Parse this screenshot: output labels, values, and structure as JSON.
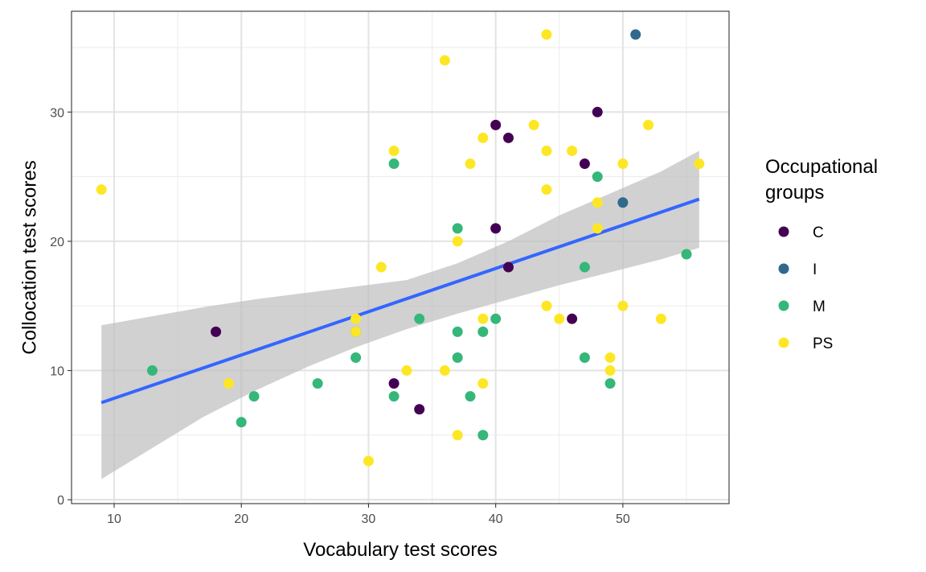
{
  "chart_data": {
    "type": "scatter",
    "title": "",
    "xlabel": "Vocabulary test scores",
    "ylabel": "Collocation test scores",
    "xlim": [
      6.65,
      58.35
    ],
    "ylim": [
      -0.3,
      37.8
    ],
    "x_ticks": [
      10,
      20,
      30,
      40,
      50
    ],
    "y_ticks": [
      0,
      10,
      20,
      30
    ],
    "grid": true,
    "legend": {
      "title_lines": [
        "Occupational",
        "groups"
      ],
      "placement": "right"
    },
    "series": [
      {
        "name": "C",
        "color": "#440154",
        "points": [
          [
            18,
            13
          ],
          [
            32,
            9
          ],
          [
            34,
            7
          ],
          [
            40,
            29
          ],
          [
            40,
            21
          ],
          [
            41,
            28
          ],
          [
            41,
            18
          ],
          [
            46,
            14
          ],
          [
            47,
            26
          ],
          [
            48,
            30
          ]
        ]
      },
      {
        "name": "I",
        "color": "#31688e",
        "points": [
          [
            29,
            13
          ],
          [
            50,
            23
          ],
          [
            51,
            36
          ]
        ]
      },
      {
        "name": "M",
        "color": "#35b779",
        "points": [
          [
            13,
            10
          ],
          [
            20,
            6
          ],
          [
            21,
            8
          ],
          [
            26,
            9
          ],
          [
            29,
            11
          ],
          [
            32,
            26
          ],
          [
            32,
            8
          ],
          [
            34,
            14
          ],
          [
            37,
            21
          ],
          [
            37,
            13
          ],
          [
            37,
            11
          ],
          [
            38,
            8
          ],
          [
            39,
            13
          ],
          [
            39,
            5
          ],
          [
            40,
            14
          ],
          [
            47,
            18
          ],
          [
            47,
            11
          ],
          [
            48,
            25
          ],
          [
            49,
            9
          ],
          [
            55,
            19
          ]
        ]
      },
      {
        "name": "PS",
        "color": "#fde725",
        "points": [
          [
            9,
            24
          ],
          [
            19,
            9
          ],
          [
            29,
            14
          ],
          [
            29,
            13
          ],
          [
            30,
            3
          ],
          [
            31,
            18
          ],
          [
            32,
            27
          ],
          [
            33,
            10
          ],
          [
            36,
            34
          ],
          [
            36,
            10
          ],
          [
            37,
            20
          ],
          [
            37,
            5
          ],
          [
            38,
            26
          ],
          [
            39,
            28
          ],
          [
            39,
            14
          ],
          [
            39,
            9
          ],
          [
            43,
            29
          ],
          [
            44,
            36
          ],
          [
            44,
            27
          ],
          [
            44,
            24
          ],
          [
            44,
            15
          ],
          [
            45,
            14
          ],
          [
            46,
            27
          ],
          [
            48,
            23
          ],
          [
            48,
            21
          ],
          [
            49,
            11
          ],
          [
            49,
            10
          ],
          [
            50,
            26
          ],
          [
            50,
            15
          ],
          [
            52,
            29
          ],
          [
            53,
            14
          ],
          [
            56,
            26
          ]
        ]
      }
    ],
    "regression": {
      "color": "#3366ff",
      "x_range": [
        9,
        56
      ],
      "intercept": 4.5,
      "slope": 0.335,
      "band_color": "#bebebe",
      "band_points": [
        [
          9,
          13.5
        ],
        [
          13,
          14.2
        ],
        [
          17,
          14.9
        ],
        [
          21,
          15.5
        ],
        [
          25,
          16.0
        ],
        [
          29,
          16.5
        ],
        [
          33,
          17.0
        ],
        [
          37,
          18.3
        ],
        [
          41,
          20.0
        ],
        [
          45,
          22.0
        ],
        [
          49,
          23.7
        ],
        [
          53,
          25.4
        ],
        [
          56,
          27.0
        ]
      ],
      "band_lower": [
        [
          9,
          1.6
        ],
        [
          13,
          4.0
        ],
        [
          17,
          6.4
        ],
        [
          21,
          8.4
        ],
        [
          25,
          10.2
        ],
        [
          29,
          11.8
        ],
        [
          33,
          13.2
        ],
        [
          37,
          14.4
        ],
        [
          41,
          15.5
        ],
        [
          45,
          16.6
        ],
        [
          49,
          17.6
        ],
        [
          53,
          18.6
        ],
        [
          56,
          19.5
        ]
      ]
    }
  }
}
